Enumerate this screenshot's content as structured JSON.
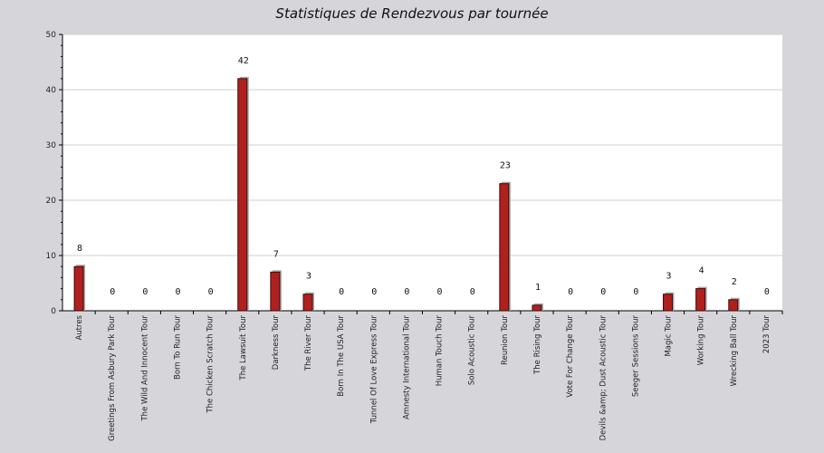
{
  "chart_data": {
    "type": "bar",
    "title": "Statistiques de Rendezvous par tournée",
    "xlabel": "",
    "ylabel": "",
    "ylim": [
      0,
      50
    ],
    "yticks": [
      0,
      10,
      20,
      30,
      40,
      50
    ],
    "grid": true,
    "categories": [
      "Autres",
      "Greetings From Asbury Park Tour",
      "The Wild And Innocent Tour",
      "Born To Run Tour",
      "The Chicken Scratch Tour",
      "The Lawsuit Tour",
      "Darkness Tour",
      "The River Tour",
      "Born In The USA Tour",
      "Tunnel Of Love Express Tour",
      "Amnesty International Tour",
      "Human Touch Tour",
      "Solo Acoustic Tour",
      "Reunion Tour",
      "The Rising Tour",
      "Vote For Change Tour",
      "Devils &amp; Dust Acoustic Tour",
      "Seeger Sessions Tour",
      "Magic Tour",
      "Working Tour",
      "Wrecking Ball Tour",
      "2023 Tour"
    ],
    "values": [
      8,
      0,
      0,
      0,
      0,
      42,
      7,
      3,
      0,
      0,
      0,
      0,
      0,
      23,
      1,
      0,
      0,
      0,
      3,
      4,
      2,
      0
    ],
    "colors": {
      "bar": "#b0201f",
      "bar_edge": "#3a0a0a",
      "shadow": "#a9a9a9",
      "plot_bg": "#ffffff",
      "page_bg": "#d6d5da",
      "grid": "#cfcfcf"
    }
  }
}
